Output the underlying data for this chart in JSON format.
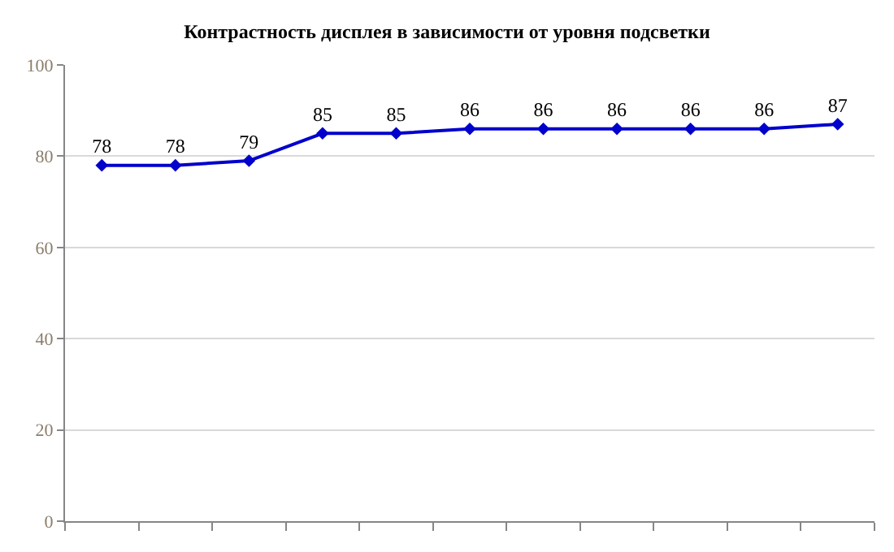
{
  "chart_data": {
    "type": "line",
    "title": "Контрастность дисплея в зависимости от уровня подсветки",
    "categories": [
      null,
      null,
      null,
      null,
      null,
      null,
      null,
      null,
      null,
      null,
      null
    ],
    "series": [
      {
        "color": "#0000cc",
        "values": [
          78,
          78,
          79,
          85,
          85,
          86,
          86,
          86,
          86,
          86,
          87
        ]
      }
    ],
    "ylim": [
      0,
      100
    ],
    "yticks": [
      0,
      20,
      40,
      60,
      80,
      100
    ],
    "grid": "y",
    "marker": "diamond",
    "line_style": "solid",
    "data_labels": true
  }
}
